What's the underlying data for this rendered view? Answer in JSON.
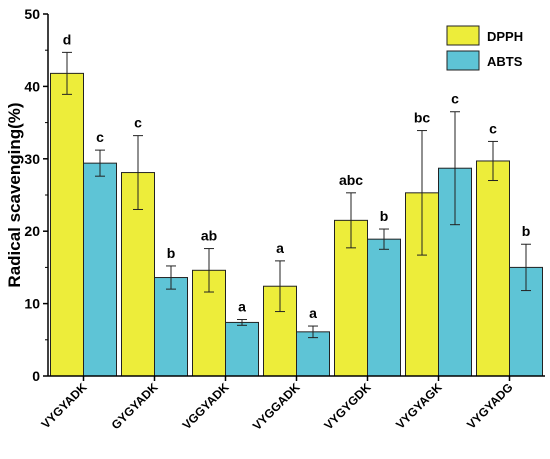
{
  "chart_data": {
    "type": "bar",
    "title": "",
    "xlabel": "",
    "ylabel": "Radical scavenging(%)",
    "ylim": [
      0,
      50
    ],
    "yticks": [
      0,
      10,
      20,
      30,
      40,
      50
    ],
    "categories": [
      "VYGYADK",
      "GYGYADK",
      "VGGYADK",
      "VYGGADK",
      "VYGYGDK",
      "VYGYAGK",
      "VYGYADG"
    ],
    "series": [
      {
        "name": "DPPH",
        "color": "#eded3a",
        "values": [
          41.8,
          28.1,
          14.6,
          12.4,
          21.5,
          25.3,
          29.7
        ],
        "errors": [
          2.9,
          5.1,
          3.0,
          3.5,
          3.8,
          8.6,
          2.7
        ],
        "letters": [
          "d",
          "c",
          "ab",
          "a",
          "abc",
          "bc",
          "c"
        ]
      },
      {
        "name": "ABTS",
        "color": "#5ec4d6",
        "values": [
          29.4,
          13.6,
          7.4,
          6.1,
          18.9,
          28.7,
          15.0
        ],
        "errors": [
          1.8,
          1.6,
          0.4,
          0.8,
          1.4,
          7.8,
          3.2
        ],
        "letters": [
          "c",
          "b",
          "a",
          "a",
          "b",
          "c",
          "b"
        ]
      }
    ],
    "legend": "top-right",
    "grid": false
  }
}
